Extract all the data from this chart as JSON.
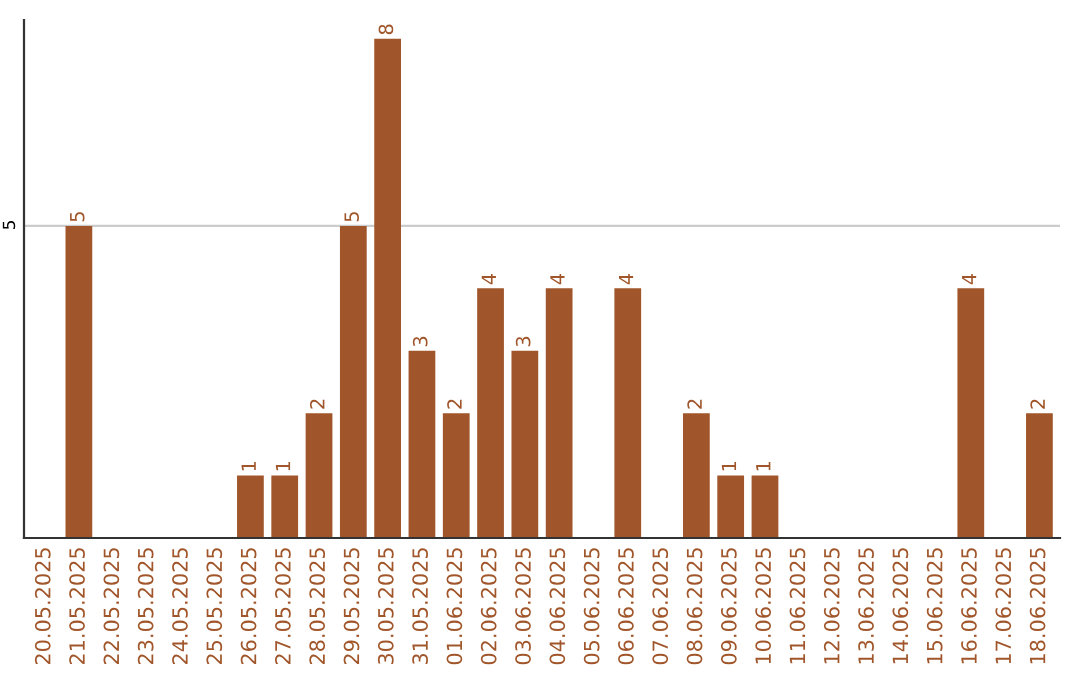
{
  "chart_data": {
    "type": "bar",
    "categories": [
      "20.05.2025",
      "21.05.2025",
      "22.05.2025",
      "23.05.2025",
      "24.05.2025",
      "25.05.2025",
      "26.05.2025",
      "27.05.2025",
      "28.05.2025",
      "29.05.2025",
      "30.05.2025",
      "31.05.2025",
      "01.06.2025",
      "02.06.2025",
      "03.06.2025",
      "04.06.2025",
      "05.06.2025",
      "06.06.2025",
      "07.06.2025",
      "08.06.2025",
      "09.06.2025",
      "10.06.2025",
      "11.06.2025",
      "12.06.2025",
      "13.06.2025",
      "14.06.2025",
      "15.06.2025",
      "16.06.2025",
      "17.06.2025",
      "18.06.2025"
    ],
    "values": [
      0,
      5,
      0,
      0,
      0,
      0,
      1,
      1,
      2,
      5,
      8,
      3,
      2,
      4,
      3,
      4,
      0,
      4,
      0,
      2,
      1,
      1,
      0,
      0,
      0,
      0,
      0,
      4,
      0,
      2
    ],
    "value_labels": [
      null,
      "5",
      null,
      null,
      null,
      null,
      "1",
      "1",
      "2",
      "5",
      "8",
      "3",
      "2",
      "4",
      "3",
      "4",
      null,
      "4",
      null,
      "2",
      "1",
      "1",
      null,
      null,
      null,
      null,
      null,
      "4",
      null,
      "2"
    ],
    "color": "#a0562a",
    "ylim": [
      0,
      8.3
    ],
    "yticks": [
      5
    ],
    "grid": "y"
  }
}
